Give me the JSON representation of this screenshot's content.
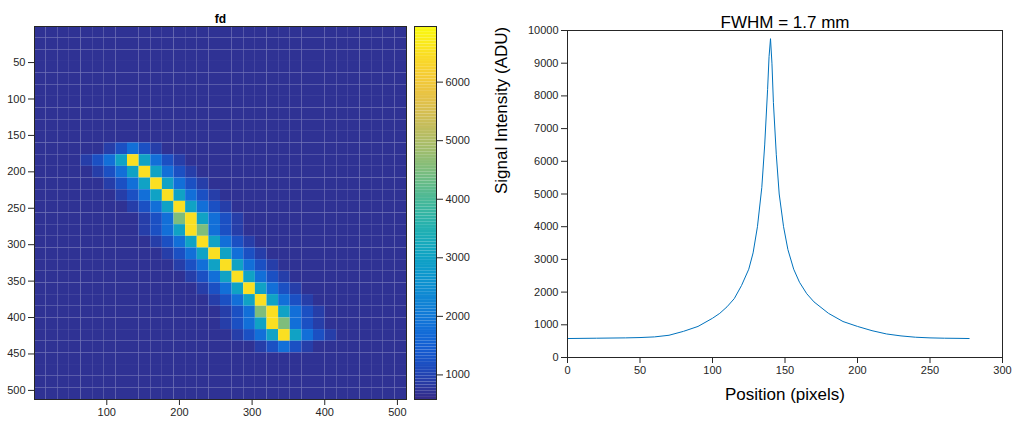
{
  "chart_data": [
    {
      "type": "heatmap",
      "title": "fd",
      "xlim": [
        0.5,
        512.5
      ],
      "xticks": [
        100,
        200,
        300,
        400,
        500
      ],
      "ylim": [
        512.5,
        0.5
      ],
      "yticks": [
        50,
        100,
        150,
        200,
        250,
        300,
        350,
        400,
        450,
        500
      ],
      "colorbar": {
        "lim": [
          580,
          6950
        ],
        "ticks": [
          1000,
          2000,
          3000,
          4000,
          5000,
          6000
        ]
      },
      "cells": [
        [
          700,
          700,
          700,
          700,
          700,
          700,
          700,
          700,
          700,
          700,
          700,
          700,
          700,
          700,
          700,
          700,
          700,
          700,
          700,
          700,
          700,
          700,
          700,
          700,
          700,
          700,
          700,
          700,
          700,
          700,
          700,
          700
        ],
        [
          700,
          700,
          700,
          700,
          700,
          700,
          700,
          700,
          700,
          700,
          700,
          700,
          700,
          700,
          700,
          700,
          700,
          700,
          700,
          700,
          700,
          700,
          700,
          700,
          700,
          700,
          700,
          700,
          700,
          700,
          700,
          700
        ],
        [
          700,
          700,
          700,
          700,
          700,
          700,
          700,
          700,
          700,
          700,
          700,
          700,
          700,
          700,
          700,
          700,
          700,
          700,
          700,
          700,
          700,
          700,
          700,
          700,
          700,
          700,
          700,
          700,
          700,
          700,
          700,
          700
        ],
        [
          700,
          700,
          700,
          700,
          700,
          700,
          700,
          700,
          700,
          700,
          700,
          700,
          700,
          700,
          700,
          700,
          700,
          700,
          700,
          700,
          700,
          700,
          700,
          700,
          700,
          700,
          700,
          700,
          700,
          700,
          700,
          700
        ],
        [
          700,
          700,
          700,
          700,
          700,
          700,
          700,
          700,
          700,
          700,
          700,
          700,
          700,
          700,
          700,
          700,
          700,
          700,
          700,
          700,
          700,
          700,
          700,
          700,
          700,
          700,
          700,
          700,
          700,
          700,
          700,
          700
        ],
        [
          700,
          700,
          700,
          700,
          700,
          700,
          700,
          700,
          700,
          700,
          700,
          700,
          700,
          700,
          700,
          700,
          700,
          700,
          700,
          700,
          700,
          700,
          700,
          700,
          700,
          700,
          700,
          700,
          700,
          700,
          700,
          700
        ],
        [
          700,
          700,
          700,
          700,
          700,
          700,
          700,
          700,
          700,
          700,
          700,
          700,
          700,
          700,
          700,
          700,
          700,
          700,
          700,
          700,
          700,
          700,
          700,
          700,
          700,
          700,
          700,
          700,
          700,
          700,
          700,
          700
        ],
        [
          700,
          700,
          700,
          700,
          700,
          700,
          700,
          700,
          700,
          700,
          700,
          700,
          700,
          700,
          700,
          700,
          700,
          700,
          700,
          700,
          700,
          700,
          700,
          700,
          700,
          700,
          700,
          700,
          700,
          700,
          700,
          700
        ],
        [
          700,
          700,
          700,
          700,
          700,
          700,
          700,
          700,
          700,
          700,
          700,
          700,
          700,
          700,
          700,
          700,
          700,
          700,
          700,
          700,
          700,
          700,
          700,
          700,
          700,
          700,
          700,
          700,
          700,
          700,
          700,
          700
        ],
        [
          700,
          700,
          700,
          700,
          700,
          700,
          700,
          700,
          700,
          700,
          700,
          700,
          700,
          700,
          700,
          700,
          700,
          700,
          700,
          700,
          700,
          700,
          700,
          700,
          700,
          700,
          700,
          700,
          700,
          700,
          700,
          700
        ],
        [
          700,
          700,
          700,
          700,
          700,
          700,
          900,
          1200,
          1800,
          1200,
          900,
          700,
          700,
          700,
          700,
          700,
          700,
          700,
          700,
          700,
          700,
          700,
          700,
          700,
          700,
          700,
          700,
          700,
          700,
          700,
          700,
          700
        ],
        [
          700,
          700,
          700,
          700,
          900,
          1200,
          1800,
          3000,
          6500,
          3000,
          1800,
          1200,
          900,
          700,
          700,
          700,
          700,
          700,
          700,
          700,
          700,
          700,
          700,
          700,
          700,
          700,
          700,
          700,
          700,
          700,
          700,
          700
        ],
        [
          700,
          700,
          700,
          700,
          700,
          900,
          1200,
          1800,
          3000,
          6500,
          3000,
          1800,
          1200,
          900,
          700,
          700,
          700,
          700,
          700,
          700,
          700,
          700,
          700,
          700,
          700,
          700,
          700,
          700,
          700,
          700,
          700,
          700
        ],
        [
          700,
          700,
          700,
          700,
          700,
          700,
          900,
          1200,
          1800,
          3000,
          6500,
          3000,
          1800,
          1200,
          900,
          700,
          700,
          700,
          700,
          700,
          700,
          700,
          700,
          700,
          700,
          700,
          700,
          700,
          700,
          700,
          700,
          700
        ],
        [
          700,
          700,
          700,
          700,
          700,
          700,
          700,
          900,
          1200,
          1800,
          3000,
          6500,
          3000,
          1800,
          1200,
          900,
          700,
          700,
          700,
          700,
          700,
          700,
          700,
          700,
          700,
          700,
          700,
          700,
          700,
          700,
          700,
          700
        ],
        [
          700,
          700,
          700,
          700,
          700,
          700,
          700,
          700,
          900,
          1200,
          1800,
          3000,
          6500,
          3000,
          1800,
          1200,
          900,
          700,
          700,
          700,
          700,
          700,
          700,
          700,
          700,
          700,
          700,
          700,
          700,
          700,
          700,
          700
        ],
        [
          700,
          700,
          700,
          700,
          700,
          700,
          700,
          700,
          700,
          900,
          1200,
          1800,
          4500,
          6500,
          3000,
          1800,
          1200,
          900,
          700,
          700,
          700,
          700,
          700,
          700,
          700,
          700,
          700,
          700,
          700,
          700,
          700,
          700
        ],
        [
          700,
          700,
          700,
          700,
          700,
          700,
          700,
          700,
          700,
          900,
          1200,
          1800,
          3000,
          6500,
          4500,
          1800,
          1200,
          900,
          700,
          700,
          700,
          700,
          700,
          700,
          700,
          700,
          700,
          700,
          700,
          700,
          700,
          700
        ],
        [
          700,
          700,
          700,
          700,
          700,
          700,
          700,
          700,
          700,
          700,
          900,
          1200,
          1800,
          3000,
          6500,
          3000,
          1800,
          1200,
          900,
          700,
          700,
          700,
          700,
          700,
          700,
          700,
          700,
          700,
          700,
          700,
          700,
          700
        ],
        [
          700,
          700,
          700,
          700,
          700,
          700,
          700,
          700,
          700,
          700,
          700,
          900,
          1200,
          1800,
          3000,
          6500,
          3000,
          1800,
          1200,
          900,
          700,
          700,
          700,
          700,
          700,
          700,
          700,
          700,
          700,
          700,
          700,
          700
        ],
        [
          700,
          700,
          700,
          700,
          700,
          700,
          700,
          700,
          700,
          700,
          700,
          700,
          900,
          1200,
          1800,
          3000,
          6500,
          3000,
          1800,
          1200,
          900,
          700,
          700,
          700,
          700,
          700,
          700,
          700,
          700,
          700,
          700,
          700
        ],
        [
          700,
          700,
          700,
          700,
          700,
          700,
          700,
          700,
          700,
          700,
          700,
          700,
          700,
          900,
          1200,
          1800,
          3000,
          6500,
          3000,
          1800,
          1200,
          900,
          700,
          700,
          700,
          700,
          700,
          700,
          700,
          700,
          700,
          700
        ],
        [
          700,
          700,
          700,
          700,
          700,
          700,
          700,
          700,
          700,
          700,
          700,
          700,
          700,
          700,
          900,
          1200,
          1800,
          3000,
          6500,
          3000,
          1800,
          1200,
          900,
          700,
          700,
          700,
          700,
          700,
          700,
          700,
          700,
          700
        ],
        [
          700,
          700,
          700,
          700,
          700,
          700,
          700,
          700,
          700,
          700,
          700,
          700,
          700,
          700,
          700,
          900,
          1200,
          1800,
          3000,
          6500,
          3000,
          1800,
          1200,
          900,
          700,
          700,
          700,
          700,
          700,
          700,
          700,
          700
        ],
        [
          700,
          700,
          700,
          700,
          700,
          700,
          700,
          700,
          700,
          700,
          700,
          700,
          700,
          700,
          700,
          700,
          900,
          1200,
          1800,
          4500,
          6500,
          3000,
          1800,
          1200,
          900,
          700,
          700,
          700,
          700,
          700,
          700,
          700
        ],
        [
          700,
          700,
          700,
          700,
          700,
          700,
          700,
          700,
          700,
          700,
          700,
          700,
          700,
          700,
          700,
          700,
          900,
          1200,
          1800,
          3000,
          6500,
          4500,
          1800,
          1200,
          900,
          700,
          700,
          700,
          700,
          700,
          700,
          700
        ],
        [
          700,
          700,
          700,
          700,
          700,
          700,
          700,
          700,
          700,
          700,
          700,
          700,
          700,
          700,
          700,
          700,
          700,
          900,
          1200,
          1800,
          3000,
          6500,
          3000,
          1800,
          1200,
          900,
          700,
          700,
          700,
          700,
          700,
          700
        ],
        [
          700,
          700,
          700,
          700,
          700,
          700,
          700,
          700,
          700,
          700,
          700,
          700,
          700,
          700,
          700,
          700,
          700,
          700,
          700,
          900,
          1200,
          1800,
          1200,
          900,
          700,
          700,
          700,
          700,
          700,
          700,
          700,
          700
        ],
        [
          700,
          700,
          700,
          700,
          700,
          700,
          700,
          700,
          700,
          700,
          700,
          700,
          700,
          700,
          700,
          700,
          700,
          700,
          700,
          700,
          700,
          700,
          700,
          700,
          700,
          700,
          700,
          700,
          700,
          700,
          700,
          700
        ],
        [
          700,
          700,
          700,
          700,
          700,
          700,
          700,
          700,
          700,
          700,
          700,
          700,
          700,
          700,
          700,
          700,
          700,
          700,
          700,
          700,
          700,
          700,
          700,
          700,
          700,
          700,
          700,
          700,
          700,
          700,
          700,
          700
        ],
        [
          700,
          700,
          700,
          700,
          700,
          700,
          700,
          700,
          700,
          700,
          700,
          700,
          700,
          700,
          700,
          700,
          700,
          700,
          700,
          700,
          700,
          700,
          700,
          700,
          700,
          700,
          700,
          700,
          700,
          700,
          700,
          700
        ],
        [
          700,
          700,
          700,
          700,
          700,
          700,
          700,
          700,
          700,
          700,
          700,
          700,
          700,
          700,
          700,
          700,
          700,
          700,
          700,
          700,
          700,
          700,
          700,
          700,
          700,
          700,
          700,
          700,
          700,
          700,
          700,
          700
        ]
      ]
    },
    {
      "type": "line",
      "title": "FWHM = 1.7 mm",
      "x_label": "Position (pixels)",
      "y_label": "Signal Intensity (ADU)",
      "x": [
        0,
        10,
        20,
        30,
        40,
        50,
        60,
        70,
        80,
        90,
        100,
        105,
        110,
        115,
        120,
        125,
        128,
        131,
        134,
        136,
        138,
        139,
        140,
        141,
        142,
        144,
        146,
        149,
        152,
        156,
        160,
        165,
        170,
        180,
        190,
        200,
        210,
        220,
        230,
        240,
        250,
        260,
        270,
        277
      ],
      "values": [
        580,
        585,
        590,
        595,
        600,
        610,
        630,
        680,
        800,
        950,
        1200,
        1350,
        1550,
        1800,
        2200,
        2700,
        3200,
        4000,
        5200,
        6500,
        8200,
        9200,
        9750,
        9000,
        7800,
        6200,
        5000,
        4000,
        3300,
        2700,
        2300,
        1950,
        1700,
        1350,
        1100,
        950,
        820,
        720,
        660,
        620,
        600,
        590,
        585,
        580
      ],
      "color": "#0072bd",
      "xlim": [
        0,
        300
      ],
      "xticks": [
        0,
        50,
        100,
        150,
        200,
        250,
        300
      ],
      "ylim": [
        0,
        10000
      ],
      "yticks": [
        0,
        1000,
        2000,
        3000,
        4000,
        5000,
        6000,
        7000,
        8000,
        9000,
        10000
      ]
    }
  ]
}
